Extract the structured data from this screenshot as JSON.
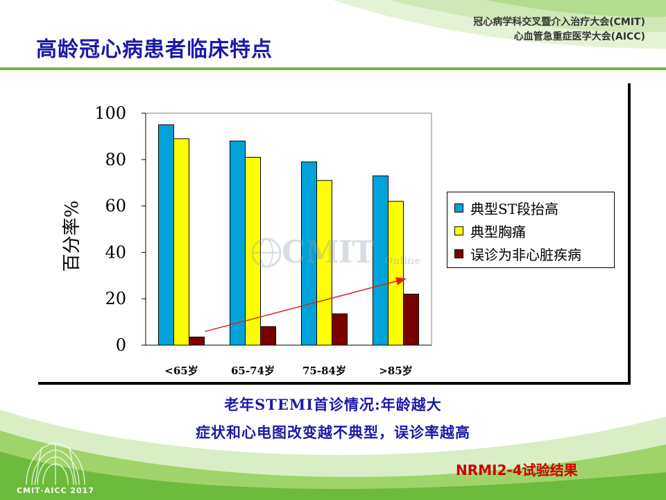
{
  "header": {
    "conference_line1": "冠心病学科交叉暨介入治疗大会(CMIT)",
    "conference_line2": "心血管急重症医学大会(AICC)"
  },
  "title": "高龄冠心病患者临床特点",
  "watermark": {
    "main": "CMIT",
    "sub": "Online"
  },
  "colors": {
    "title": "#1a1aa8",
    "accent_green": "#6dbb3c",
    "series1": "#00a3d9",
    "series2": "#ffff00",
    "series3": "#7a0000",
    "trend_arrow": "#e02020",
    "source": "#cc0000"
  },
  "chart_data": {
    "type": "bar",
    "categories": [
      "<65岁",
      "65-74岁",
      "75-84岁",
      ">85岁"
    ],
    "series": [
      {
        "name": "典型ST段抬高",
        "values": [
          95,
          88,
          79,
          73
        ]
      },
      {
        "name": "典型胸痛",
        "values": [
          89,
          81,
          71,
          62
        ]
      },
      {
        "name": "误诊为非心脏疾病",
        "values": [
          3.5,
          8,
          13.5,
          22
        ]
      }
    ],
    "ylabel": "百分率%",
    "ylim": [
      0,
      100
    ],
    "yticks": [
      0,
      20,
      40,
      60,
      80,
      100
    ],
    "legend_position": "right",
    "grid": false,
    "annotation": "red upward trend arrow across misdiagnosis bars"
  },
  "captions": {
    "line1": "老年STEMI首诊情况:年龄越大",
    "line2": "症状和心电图改变越不典型，误诊率越高"
  },
  "source": "NRMI2-4试验结果",
  "logo": {
    "text": "CMIT·AICC 2017"
  }
}
